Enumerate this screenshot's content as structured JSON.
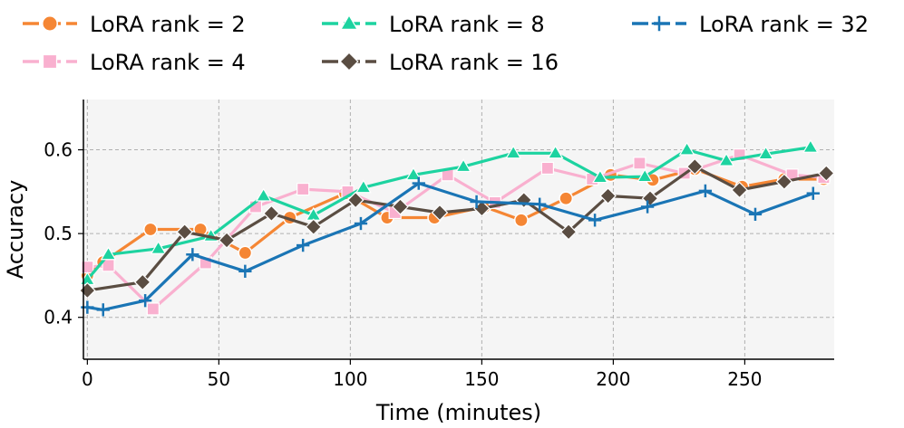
{
  "chart_data": {
    "type": "line",
    "title": "",
    "xlabel": "Time (minutes)",
    "ylabel": "Accuracy",
    "xlim": [
      -1.5,
      284
    ],
    "ylim": [
      0.35,
      0.66
    ],
    "xticks": [
      0,
      50,
      100,
      150,
      200,
      250
    ],
    "yticks": [
      0.4,
      0.5,
      0.6
    ],
    "xtick_labels": [
      "0",
      "50",
      "100",
      "150",
      "200",
      "250"
    ],
    "ytick_labels": [
      "0.4",
      "0.5",
      "0.6"
    ],
    "grid": true,
    "legend_position": "top",
    "series": [
      {
        "name": "LoRA rank = 2",
        "color": "#f58634",
        "marker": "circle",
        "x": [
          0,
          6,
          24,
          43,
          60,
          77,
          98,
          114,
          132,
          151,
          165,
          182,
          199,
          215,
          231,
          249,
          265,
          280
        ],
        "y": [
          0.45,
          0.466,
          0.505,
          0.505,
          0.477,
          0.519,
          0.548,
          0.519,
          0.519,
          0.532,
          0.516,
          0.542,
          0.57,
          0.564,
          0.577,
          0.556,
          0.565,
          0.565
        ]
      },
      {
        "name": "LoRA rank = 4",
        "color": "#f9b0cf",
        "marker": "square",
        "x": [
          0,
          8,
          25,
          45,
          64,
          82,
          99,
          117,
          137,
          155,
          175,
          192,
          210,
          227,
          248,
          268,
          280
        ],
        "y": [
          0.46,
          0.462,
          0.41,
          0.465,
          0.532,
          0.553,
          0.55,
          0.525,
          0.57,
          0.537,
          0.578,
          0.565,
          0.584,
          0.572,
          0.594,
          0.57,
          0.567
        ]
      },
      {
        "name": "LoRA rank = 8",
        "color": "#1dd3a0",
        "marker": "triangle",
        "x": [
          0,
          8,
          27,
          47,
          67,
          86,
          105,
          124,
          143,
          162,
          178,
          195,
          212,
          228,
          243,
          258,
          275
        ],
        "y": [
          0.445,
          0.475,
          0.482,
          0.497,
          0.545,
          0.522,
          0.555,
          0.57,
          0.58,
          0.596,
          0.596,
          0.567,
          0.568,
          0.6,
          0.587,
          0.595,
          0.603
        ]
      },
      {
        "name": "LoRA rank = 16",
        "color": "#5a4d42",
        "marker": "diamond",
        "x": [
          0,
          21,
          37,
          53,
          70,
          86,
          102,
          119,
          134,
          150,
          166,
          183,
          198,
          214,
          231,
          248,
          265,
          281
        ],
        "y": [
          0.432,
          0.442,
          0.502,
          0.492,
          0.524,
          0.508,
          0.54,
          0.532,
          0.525,
          0.53,
          0.54,
          0.502,
          0.545,
          0.542,
          0.58,
          0.552,
          0.562,
          0.572
        ]
      },
      {
        "name": "LoRA rank = 32",
        "color": "#1a75b5",
        "marker": "plus",
        "x": [
          0,
          6,
          22,
          40,
          60,
          82,
          104,
          126,
          148,
          172,
          193,
          213,
          235,
          254,
          276
        ],
        "y": [
          0.412,
          0.409,
          0.42,
          0.475,
          0.455,
          0.486,
          0.512,
          0.56,
          0.538,
          0.535,
          0.516,
          0.532,
          0.551,
          0.523,
          0.548
        ]
      }
    ]
  }
}
